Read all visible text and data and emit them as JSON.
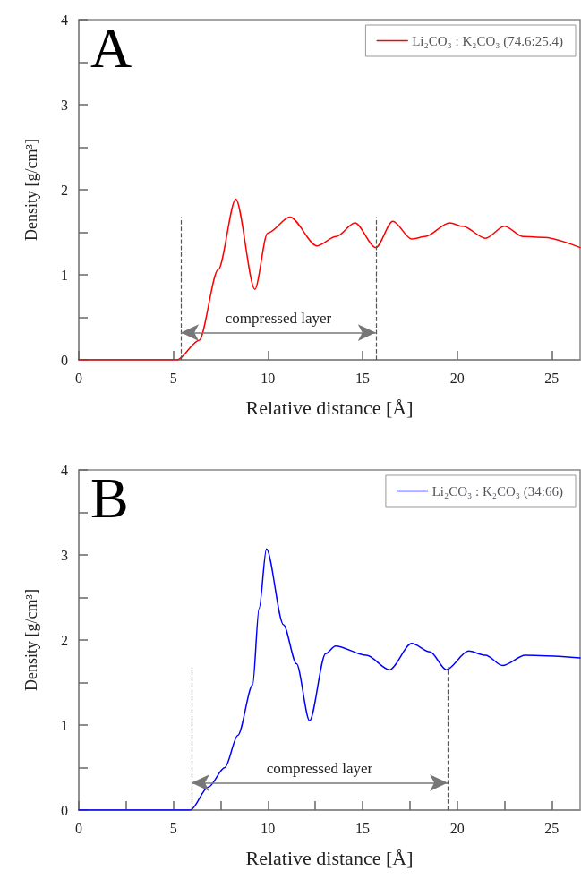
{
  "chart_data": [
    {
      "type": "line",
      "title": "A",
      "xlabel": "Relative distance [Å]",
      "ylabel": "Density [g/cm³]",
      "xlim": [
        0,
        26.5
      ],
      "ylim": [
        0,
        4
      ],
      "xticks": [
        0,
        5,
        10,
        15,
        20,
        25
      ],
      "yticks": [
        0,
        {
          "value": 0.5,
          "label": null
        },
        1,
        {
          "value": 1.5,
          "label": null
        },
        2,
        {
          "value": 2.5,
          "label": null
        },
        3,
        {
          "value": 3.5,
          "label": null
        },
        4
      ],
      "grid": false,
      "legend": "top right",
      "marker": "none",
      "line_style": "solid",
      "series": [
        {
          "name": "Li₂CO₃ : K₂CO₃ (74.6:25.4)",
          "color": "#ff0000",
          "x": [
            0,
            5.2,
            6.36,
            7.37,
            8.3,
            9.31,
            9.98,
            11.16,
            12.6,
            13.6,
            14.6,
            15.7,
            16.6,
            17.6,
            18.3,
            19.6,
            20.3,
            21.5,
            22.5,
            23.5,
            24.6,
            26.5
          ],
          "values": [
            0,
            0,
            0.23,
            1.06,
            1.89,
            0.83,
            1.49,
            1.68,
            1.34,
            1.45,
            1.61,
            1.32,
            1.63,
            1.42,
            1.45,
            1.61,
            1.57,
            1.43,
            1.57,
            1.45,
            1.44,
            1.32
          ]
        }
      ],
      "ref_lines": [
        {
          "axis": "x",
          "value": 5.4,
          "label": null,
          "line_style": "dashed"
        },
        {
          "axis": "x",
          "value": 15.7,
          "label": null,
          "line_style": "dashed"
        }
      ],
      "annotations": [
        "compressed layer"
      ]
    },
    {
      "type": "line",
      "title": "B",
      "xlabel": "Relative distance [Å]",
      "ylabel": "Density [g/cm³]",
      "xlim": [
        0,
        26.5
      ],
      "ylim": [
        0,
        4
      ],
      "xticks": [
        0,
        {
          "value": 2.5,
          "label": null
        },
        5,
        {
          "value": 7.5,
          "label": null
        },
        10,
        {
          "value": 12.5,
          "label": null
        },
        15,
        {
          "value": 17.5,
          "label": null
        },
        20,
        {
          "value": 22.5,
          "label": null
        },
        25
      ],
      "yticks": [
        0,
        {
          "value": 0.5,
          "label": null
        },
        1,
        {
          "value": 1.5,
          "label": null
        },
        2,
        {
          "value": 2.5,
          "label": null
        },
        3,
        {
          "value": 3.5,
          "label": null
        },
        4
      ],
      "grid": false,
      "legend": "top right",
      "marker": "none",
      "line_style": "solid",
      "series": [
        {
          "name": "Li₂CO₃ : K₂CO₃ (34:66)",
          "color": "#0000ff",
          "x": [
            0,
            5.9,
            6.85,
            7.72,
            8.41,
            9.19,
            9.53,
            9.92,
            10.82,
            11.51,
            12.2,
            13.05,
            13.57,
            15.2,
            16.42,
            17.6,
            18.57,
            19.43,
            20.6,
            21.5,
            22.4,
            23.6,
            26.5
          ],
          "values": [
            0,
            0,
            0.27,
            0.5,
            0.88,
            1.47,
            2.37,
            3.07,
            2.18,
            1.72,
            1.05,
            1.84,
            1.93,
            1.82,
            1.65,
            1.96,
            1.86,
            1.65,
            1.87,
            1.82,
            1.7,
            1.82,
            1.79
          ]
        }
      ],
      "ref_lines": [
        {
          "axis": "x",
          "value": 5.96,
          "label": null,
          "line_style": "dashed"
        },
        {
          "axis": "x",
          "value": 19.5,
          "label": null,
          "line_style": "dashed"
        }
      ],
      "annotations": [
        "compressed layer"
      ]
    }
  ]
}
